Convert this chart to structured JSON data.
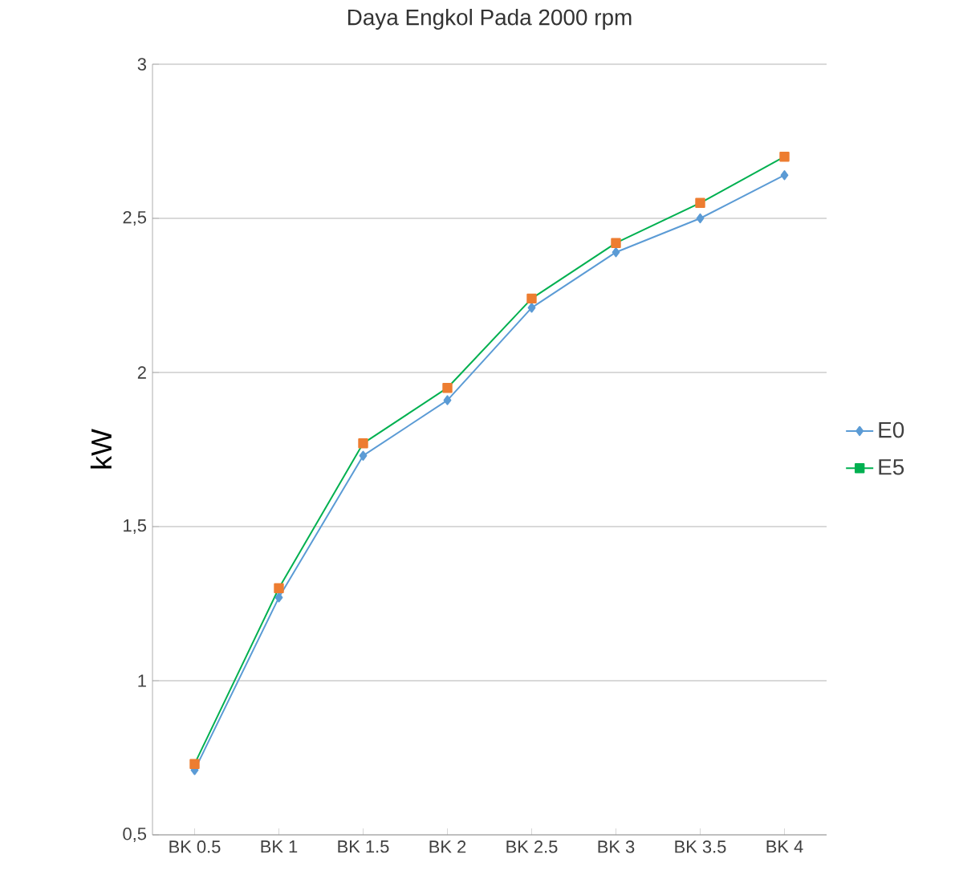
{
  "chart_data": {
    "type": "line",
    "title": "Daya Engkol Pada 2000 rpm",
    "ylabel": "kW",
    "categories": [
      "BK 0.5",
      "BK 1",
      "BK 1.5",
      "BK 2",
      "BK 2.5",
      "BK 3",
      "BK 3.5",
      "BK 4"
    ],
    "series": [
      {
        "name": "E0",
        "color": "#5b9bd5",
        "marker": "diamond",
        "values": [
          0.71,
          1.27,
          1.73,
          1.91,
          2.21,
          2.39,
          2.5,
          2.64
        ]
      },
      {
        "name": "E5",
        "color": "#00b050",
        "colors": [
          "#ed7d31",
          "#ed7d31",
          "#ed7d31",
          "#ed7d31",
          "#ed7d31",
          "#ed7d31",
          "#ed7d31",
          "#ed7d31"
        ],
        "marker": "square",
        "values": [
          0.73,
          1.3,
          1.77,
          1.95,
          2.24,
          2.42,
          2.55,
          2.7
        ]
      }
    ],
    "ylim": [
      0.5,
      3
    ],
    "yticks": [
      {
        "value": 0.5,
        "label": "0,5"
      },
      1,
      {
        "value": 1.5,
        "label": "1,5"
      },
      2,
      {
        "value": 2.5,
        "label": "2,5"
      },
      3
    ],
    "grid": "y",
    "legend": "right",
    "line_style": "solid"
  }
}
